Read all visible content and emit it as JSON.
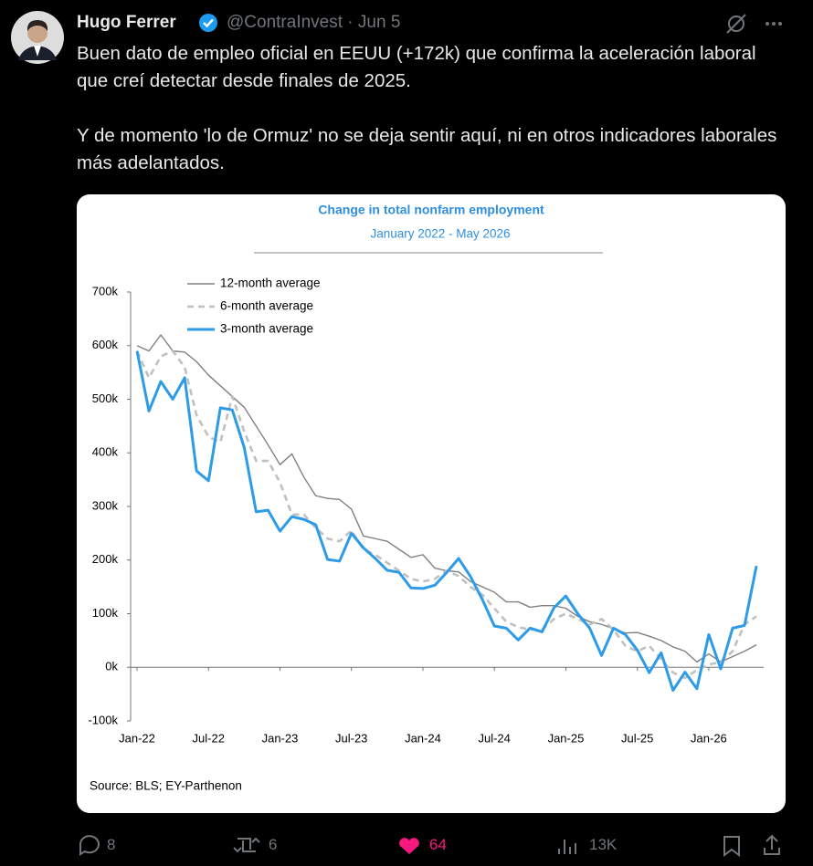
{
  "tweet": {
    "name": "Hugo Ferrer",
    "handle": "@ContraInvest",
    "separator": "·",
    "date": "Jun 5",
    "text": [
      "Buen dato de empleo oficial en EEUU (+172k) que confirma la aceleración laboral que creí detectar desde finales de 2025.",
      "Y de momento 'lo de Ormuz' no se deja sentir aquí, ni en otros indicadores laborales más adelantados."
    ],
    "stats": {
      "replies": "8",
      "reposts": "6",
      "likes": "64",
      "views": "13K"
    }
  },
  "chart_data": {
    "type": "line",
    "title": "Change in total nonfarm employment",
    "subtitle": "January 2022 - May 2026",
    "source": "Source: BLS; EY-Parthenon",
    "categories": [
      "Jan-22",
      null,
      null,
      null,
      null,
      null,
      "Jul-22",
      null,
      null,
      null,
      null,
      null,
      "Jan-23",
      null,
      null,
      null,
      null,
      null,
      "Jul-23",
      null,
      null,
      null,
      null,
      null,
      "Jan-24",
      null,
      null,
      null,
      null,
      null,
      "Jul-24",
      null,
      null,
      null,
      null,
      null,
      "Jan-25",
      null,
      null,
      null,
      null,
      null,
      "Jul-25",
      null,
      null,
      null,
      null,
      null,
      "Jan-26",
      null,
      null,
      null,
      null
    ],
    "ylim": [
      -100,
      700
    ],
    "yticks": [
      {
        "value": -100,
        "label": "-100k"
      },
      {
        "value": 0,
        "label": "0k"
      },
      {
        "value": 100,
        "label": "100k"
      },
      {
        "value": 200,
        "label": "200k"
      },
      {
        "value": 300,
        "label": "300k"
      },
      {
        "value": 400,
        "label": "400k"
      },
      {
        "value": 500,
        "label": "500k"
      },
      {
        "value": 600,
        "label": "600k"
      },
      {
        "value": 700,
        "label": "700k"
      }
    ],
    "grid": false,
    "legend": "upper-left",
    "series": [
      {
        "name": "12-month average",
        "color": "#808080",
        "dashed": false,
        "values": [
          600,
          590,
          620,
          590,
          588,
          570,
          545,
          525,
          505,
          485,
          450,
          415,
          378,
          398,
          355,
          320,
          315,
          313,
          295,
          245,
          240,
          235,
          220,
          205,
          210,
          185,
          180,
          178,
          160,
          150,
          140,
          122,
          122,
          112,
          115,
          115,
          110,
          95,
          85,
          80,
          72,
          64,
          65,
          58,
          50,
          38,
          30,
          10,
          25,
          10,
          20,
          30,
          42
        ]
      },
      {
        "name": "6-month average",
        "color": "#c0c0c0",
        "dashed": true,
        "values": [
          590,
          540,
          580,
          590,
          560,
          470,
          430,
          420,
          505,
          440,
          385,
          385,
          345,
          285,
          285,
          260,
          240,
          235,
          255,
          220,
          210,
          195,
          180,
          165,
          160,
          165,
          180,
          170,
          150,
          135,
          110,
          85,
          75,
          70,
          70,
          90,
          100,
          90,
          80,
          90,
          70,
          40,
          30,
          40,
          15,
          -10,
          -20,
          -5,
          5,
          10,
          30,
          80,
          95
        ]
      },
      {
        "name": "3-month average",
        "color": "#2e9be8",
        "dashed": false,
        "values": [
          590,
          478,
          533,
          500,
          540,
          366,
          348,
          484,
          480,
          410,
          290,
          293,
          254,
          281,
          276,
          266,
          201,
          198,
          250,
          223,
          203,
          181,
          177,
          148,
          147,
          153,
          177,
          203,
          169,
          126,
          77,
          73,
          51,
          73,
          66,
          111,
          133,
          100,
          73,
          22,
          73,
          61,
          32,
          -10,
          27,
          -43,
          -9,
          -40,
          61,
          -3,
          73,
          78,
          189
        ]
      }
    ]
  }
}
